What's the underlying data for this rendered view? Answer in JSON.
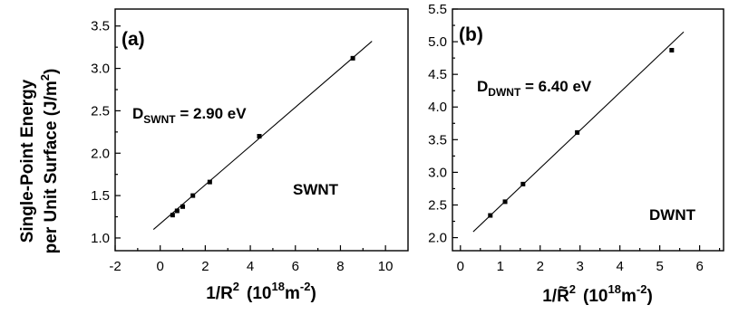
{
  "figure": {
    "ylabel_line1": "Single-Point Energy",
    "ylabel_line2": "per Unit Surface (J/m",
    "ylabel_sup": "2",
    "ylabel_close": ")"
  },
  "chart_data": [
    {
      "type": "scatter",
      "panel_label": "(a)",
      "xlabel_main": "1/R",
      "xlabel_sup": "2",
      "xlabel_units_open": "(10",
      "xlabel_units_exp": "18",
      "xlabel_units_rest": "m",
      "xlabel_units_exp2": "-2",
      "xlabel_units_close": ")",
      "xlim": [
        -2,
        11
      ],
      "ylim": [
        0.85,
        3.7
      ],
      "xticks": [
        -2,
        0,
        2,
        4,
        6,
        8,
        10
      ],
      "yticks": [
        1.0,
        1.5,
        2.0,
        2.5,
        3.0,
        3.5
      ],
      "ytick_labels": [
        "1.0",
        "1.5",
        "2.0",
        "2.5",
        "3.0",
        "3.5"
      ],
      "xtick_labels": [
        "-2",
        "0",
        "2",
        "4",
        "6",
        "8",
        "10"
      ],
      "points": [
        {
          "x": 0.55,
          "y": 1.27
        },
        {
          "x": 0.75,
          "y": 1.32
        },
        {
          "x": 1.0,
          "y": 1.37
        },
        {
          "x": 1.45,
          "y": 1.5
        },
        {
          "x": 2.2,
          "y": 1.66
        },
        {
          "x": 4.4,
          "y": 2.2
        },
        {
          "x": 8.55,
          "y": 3.12
        }
      ],
      "fit": {
        "x0": -0.3,
        "y0": 1.1,
        "x1": 9.4,
        "y1": 3.32
      },
      "annotation_main": "D",
      "annotation_sub": "SWNT",
      "annotation_value": " = 2.90 eV",
      "tag": "SWNT"
    },
    {
      "type": "scatter",
      "panel_label": "(b)",
      "xlabel_main": "1/R",
      "xlabel_tilde": "~",
      "xlabel_sup": "2",
      "xlabel_units_open": "(10",
      "xlabel_units_exp": "18",
      "xlabel_units_rest": "m",
      "xlabel_units_exp2": "-2",
      "xlabel_units_close": ")",
      "xlim": [
        -0.2,
        6.6
      ],
      "ylim": [
        1.8,
        5.5
      ],
      "xticks": [
        0,
        1,
        2,
        3,
        4,
        5,
        6
      ],
      "yticks": [
        2.0,
        2.5,
        3.0,
        3.5,
        4.0,
        4.5,
        5.0,
        5.5
      ],
      "ytick_labels": [
        "2.0",
        "2.5",
        "3.0",
        "3.5",
        "4.0",
        "4.5",
        "5.0",
        "5.5"
      ],
      "xtick_labels": [
        "0",
        "1",
        "2",
        "3",
        "4",
        "5",
        "6"
      ],
      "points": [
        {
          "x": 0.75,
          "y": 2.34
        },
        {
          "x": 1.12,
          "y": 2.55
        },
        {
          "x": 1.57,
          "y": 2.82
        },
        {
          "x": 2.93,
          "y": 3.61
        },
        {
          "x": 5.3,
          "y": 4.87
        }
      ],
      "fit": {
        "x0": 0.32,
        "y0": 2.09,
        "x1": 5.6,
        "y1": 5.15
      },
      "annotation_main": "D",
      "annotation_sub": "DWNT",
      "annotation_value": " = 6.40 eV",
      "tag": "DWNT"
    }
  ]
}
